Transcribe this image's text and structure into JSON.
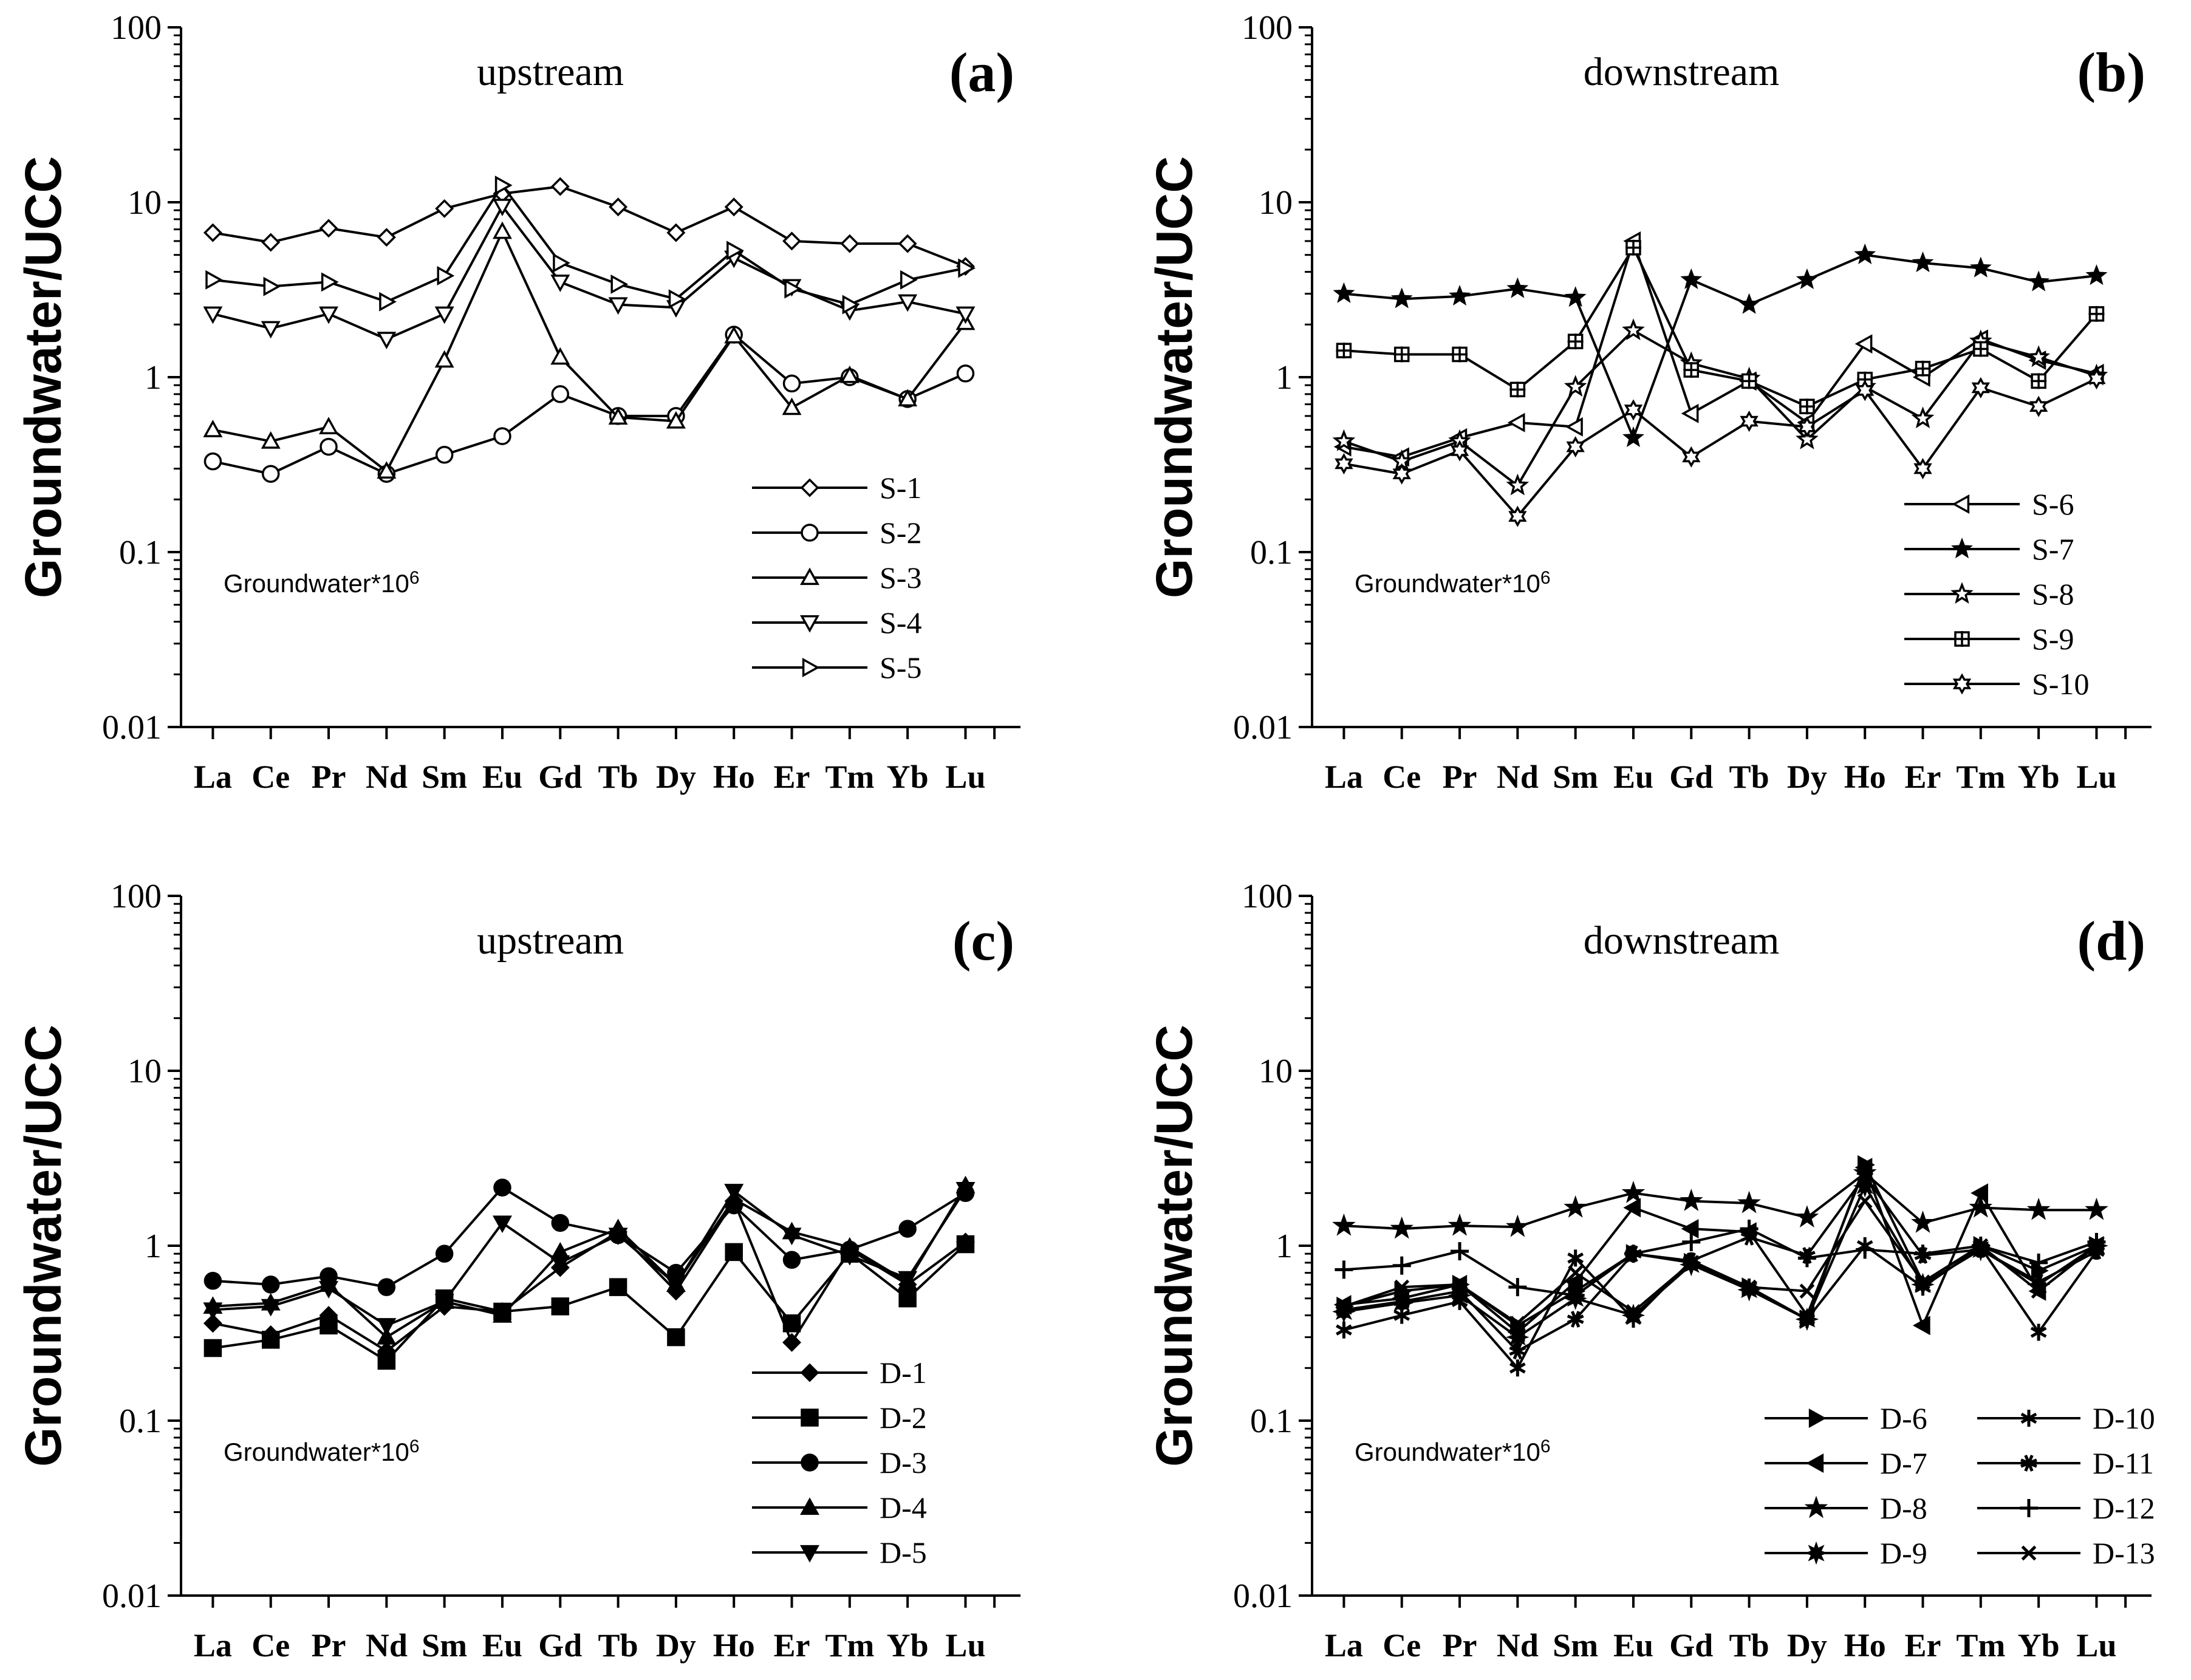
{
  "chart_data": [
    {
      "type": "line",
      "id": "a",
      "panel_label": "(a)",
      "title": "upstream",
      "ylabel": "Groundwater/UCC",
      "yscale": "log",
      "ylim": [
        0.01,
        100
      ],
      "yticks": [
        "0.01",
        "0.1",
        "1",
        "10",
        "100"
      ],
      "annotation": "Groundwater*10",
      "annotation_sup": "6",
      "legend_position": "right-middle",
      "legend_columns": 1,
      "categories": [
        "La",
        "Ce",
        "Pr",
        "Nd",
        "Sm",
        "Eu",
        "Gd",
        "Tb",
        "Dy",
        "Ho",
        "Er",
        "Tm",
        "Yb",
        "Lu"
      ],
      "series": [
        {
          "name": "S-1",
          "marker": "diamond-open",
          "values": [
            6.7,
            5.9,
            7.1,
            6.3,
            9.2,
            11.2,
            12.3,
            9.4,
            6.7,
            9.4,
            6.0,
            5.8,
            5.8,
            4.3
          ]
        },
        {
          "name": "S-2",
          "marker": "circle-open",
          "values": [
            0.33,
            0.28,
            0.4,
            0.28,
            0.36,
            0.46,
            0.8,
            0.6,
            0.6,
            1.75,
            0.92,
            1.0,
            0.75,
            1.05
          ]
        },
        {
          "name": "S-3",
          "marker": "triangle-up-open",
          "values": [
            0.5,
            0.43,
            0.52,
            0.29,
            1.25,
            6.8,
            1.3,
            0.59,
            0.56,
            1.72,
            0.67,
            1.02,
            0.75,
            2.05
          ]
        },
        {
          "name": "S-4",
          "marker": "triangle-down-open",
          "values": [
            2.3,
            1.9,
            2.3,
            1.65,
            2.3,
            9.5,
            3.5,
            2.6,
            2.5,
            4.8,
            3.3,
            2.4,
            2.7,
            2.3
          ]
        },
        {
          "name": "S-5",
          "marker": "triangle-right-open",
          "values": [
            3.6,
            3.3,
            3.5,
            2.7,
            3.8,
            12.5,
            4.5,
            3.4,
            2.8,
            5.3,
            3.2,
            2.6,
            3.6,
            4.2
          ]
        }
      ]
    },
    {
      "type": "line",
      "id": "b",
      "panel_label": "(b)",
      "title": "downstream",
      "ylabel": "Groundwater/UCC",
      "yscale": "log",
      "ylim": [
        0.01,
        100
      ],
      "yticks": [
        "0.01",
        "0.1",
        "1",
        "10",
        "100"
      ],
      "annotation": "Groundwater*10",
      "annotation_sup": "6",
      "legend_position": "right-lower",
      "legend_columns": 1,
      "categories": [
        "La",
        "Ce",
        "Pr",
        "Nd",
        "Sm",
        "Eu",
        "Gd",
        "Tb",
        "Dy",
        "Ho",
        "Er",
        "Tm",
        "Yb",
        "Lu"
      ],
      "series": [
        {
          "name": "S-6",
          "marker": "triangle-left-open",
          "values": [
            0.4,
            0.35,
            0.45,
            0.55,
            0.52,
            6.0,
            0.62,
            0.95,
            0.55,
            1.55,
            1.0,
            1.65,
            1.25,
            1.05
          ]
        },
        {
          "name": "S-7",
          "marker": "star-filled",
          "values": [
            3.0,
            2.8,
            2.9,
            3.2,
            2.85,
            0.45,
            3.6,
            2.6,
            3.6,
            5.0,
            4.5,
            4.2,
            3.5,
            3.8
          ]
        },
        {
          "name": "S-8",
          "marker": "star-open",
          "values": [
            0.43,
            0.33,
            0.43,
            0.24,
            0.88,
            1.85,
            1.2,
            0.98,
            0.44,
            0.88,
            0.58,
            1.6,
            1.3,
            1.02
          ]
        },
        {
          "name": "S-9",
          "marker": "square-cross",
          "values": [
            1.42,
            1.35,
            1.35,
            0.85,
            1.6,
            5.5,
            1.1,
            0.95,
            0.68,
            0.97,
            1.12,
            1.45,
            0.95,
            2.3
          ]
        },
        {
          "name": "S-10",
          "marker": "star6-open",
          "values": [
            0.32,
            0.28,
            0.38,
            0.16,
            0.4,
            0.65,
            0.35,
            0.56,
            0.52,
            0.84,
            0.3,
            0.87,
            0.68,
            0.98
          ]
        }
      ]
    },
    {
      "type": "line",
      "id": "c",
      "panel_label": "(c)",
      "title": "upstream",
      "ylabel": "Groundwater/UCC",
      "yscale": "log",
      "ylim": [
        0.01,
        100
      ],
      "yticks": [
        "0.01",
        "0.1",
        "1",
        "10",
        "100"
      ],
      "annotation": "Groundwater*10",
      "annotation_sup": "6",
      "legend_position": "right-lower",
      "legend_columns": 1,
      "categories": [
        "La",
        "Ce",
        "Pr",
        "Nd",
        "Sm",
        "Eu",
        "Gd",
        "Tb",
        "Dy",
        "Ho",
        "Er",
        "Tm",
        "Yb",
        "Lu"
      ],
      "series": [
        {
          "name": "D-1",
          "marker": "diamond-filled",
          "values": [
            0.36,
            0.31,
            0.4,
            0.25,
            0.45,
            0.42,
            0.75,
            1.2,
            0.55,
            1.8,
            0.28,
            0.95,
            0.6,
            1.05
          ]
        },
        {
          "name": "D-2",
          "marker": "square-filled",
          "values": [
            0.26,
            0.29,
            0.35,
            0.22,
            0.5,
            0.42,
            0.45,
            0.58,
            0.3,
            0.92,
            0.36,
            0.9,
            0.5,
            1.02
          ]
        },
        {
          "name": "D-3",
          "marker": "circle-filled",
          "values": [
            0.63,
            0.6,
            0.67,
            0.58,
            0.9,
            2.15,
            1.35,
            1.15,
            0.7,
            1.7,
            0.83,
            0.95,
            1.25,
            2.0
          ]
        },
        {
          "name": "D-4",
          "marker": "triangle-up-filled",
          "values": [
            0.45,
            0.47,
            0.6,
            0.3,
            0.48,
            0.4,
            0.92,
            1.25,
            0.6,
            1.85,
            1.2,
            0.98,
            0.62,
            2.2
          ]
        },
        {
          "name": "D-5",
          "marker": "triangle-down-filled",
          "values": [
            0.43,
            0.45,
            0.57,
            0.35,
            0.48,
            1.35,
            0.8,
            1.15,
            0.6,
            2.05,
            1.15,
            0.88,
            0.65,
            2.1
          ]
        }
      ]
    },
    {
      "type": "line",
      "id": "d",
      "panel_label": "(d)",
      "title": "downstream",
      "ylabel": "Groundwater/UCC",
      "yscale": "log",
      "ylim": [
        0.01,
        100
      ],
      "yticks": [
        "0.01",
        "0.1",
        "1",
        "10",
        "100"
      ],
      "annotation": "Groundwater*10",
      "annotation_sup": "6",
      "legend_position": "bottom-right",
      "legend_columns": 2,
      "categories": [
        "La",
        "Ce",
        "Pr",
        "Nd",
        "Sm",
        "Eu",
        "Gd",
        "Tb",
        "Dy",
        "Ho",
        "Er",
        "Tm",
        "Yb",
        "Lu"
      ],
      "series": [
        {
          "name": "D-6",
          "marker": "tri-right-filled",
          "values": [
            0.45,
            0.55,
            0.6,
            0.35,
            0.55,
            0.9,
            0.8,
            0.58,
            0.38,
            2.9,
            0.62,
            1.0,
            0.72,
            1.0
          ]
        },
        {
          "name": "D-7",
          "marker": "tri-left-filled",
          "values": [
            0.46,
            0.5,
            0.6,
            0.32,
            0.62,
            1.65,
            1.25,
            1.2,
            0.4,
            2.8,
            0.35,
            2.0,
            0.55,
            1.0
          ]
        },
        {
          "name": "D-8",
          "marker": "star5-filled",
          "values": [
            1.3,
            1.25,
            1.3,
            1.28,
            1.65,
            2.0,
            1.8,
            1.75,
            1.45,
            2.6,
            1.35,
            1.65,
            1.6,
            1.6
          ]
        },
        {
          "name": "D-9",
          "marker": "burst-filled",
          "values": [
            0.42,
            0.47,
            0.52,
            0.3,
            0.5,
            0.4,
            0.78,
            0.56,
            0.38,
            2.2,
            0.6,
            0.95,
            0.6,
            1.0
          ]
        },
        {
          "name": "D-10",
          "marker": "asterisk6",
          "values": [
            0.33,
            0.4,
            0.48,
            0.2,
            0.85,
            0.38,
            0.82,
            0.58,
            0.38,
            1.0,
            0.58,
            0.98,
            0.32,
            0.93
          ]
        },
        {
          "name": "D-11",
          "marker": "asterisk8",
          "values": [
            0.43,
            0.48,
            0.55,
            0.25,
            0.38,
            0.9,
            0.82,
            1.12,
            0.88,
            2.5,
            0.88,
            0.95,
            0.62,
            0.93
          ]
        },
        {
          "name": "D-12",
          "marker": "plus",
          "values": [
            0.73,
            0.77,
            0.93,
            0.58,
            0.52,
            0.9,
            1.05,
            1.25,
            0.85,
            0.95,
            0.9,
            1.0,
            0.8,
            1.05
          ]
        },
        {
          "name": "D-13",
          "marker": "cross",
          "values": [
            0.45,
            0.58,
            0.6,
            0.36,
            0.7,
            0.42,
            0.8,
            0.58,
            0.55,
            1.8,
            0.62,
            1.0,
            0.55,
            1.0
          ]
        }
      ]
    }
  ]
}
